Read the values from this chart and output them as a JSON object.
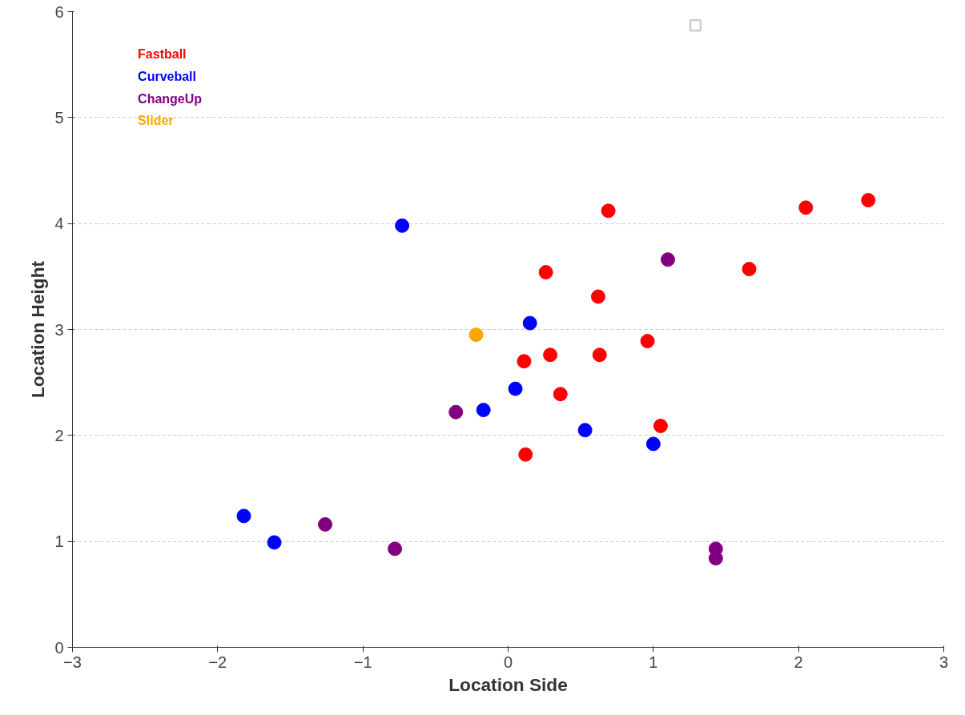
{
  "chart_data": {
    "type": "scatter",
    "xlabel": "Location Side",
    "ylabel": "Location Height",
    "xlim": [
      -3,
      3
    ],
    "ylim": [
      0,
      6
    ],
    "xticks": [
      {
        "value": -3,
        "label": "−3"
      },
      {
        "value": -2,
        "label": "−2"
      },
      {
        "value": -1,
        "label": "−1"
      },
      0,
      1,
      2,
      3
    ],
    "yticks": [
      0,
      1,
      2,
      3,
      4,
      5,
      6
    ],
    "grid": "y",
    "legend": "top left",
    "marker": "circle",
    "series": [
      {
        "name": "Fastball",
        "color": "#ff0000",
        "x": [
          0.69,
          2.05,
          2.48,
          1.66,
          0.26,
          0.62,
          0.96,
          0.29,
          0.63,
          0.11,
          0.36,
          1.05,
          0.12
        ],
        "values": [
          4.12,
          4.15,
          4.22,
          3.57,
          3.54,
          3.31,
          2.89,
          2.76,
          2.76,
          2.7,
          2.39,
          2.09,
          1.82
        ]
      },
      {
        "name": "Curveball",
        "color": "#0000ff",
        "x": [
          -0.73,
          0.15,
          0.05,
          -0.17,
          0.53,
          1.0,
          -1.82,
          -1.61
        ],
        "values": [
          3.98,
          3.06,
          2.44,
          2.24,
          2.05,
          1.92,
          1.24,
          0.99
        ]
      },
      {
        "name": "ChangeUp",
        "color": "#800080",
        "x": [
          1.1,
          -0.36,
          -1.26,
          -0.78,
          1.43,
          1.43
        ],
        "values": [
          3.66,
          2.22,
          1.16,
          0.93,
          0.93,
          0.84
        ]
      },
      {
        "name": "Slider",
        "color": "#ffa500",
        "x": [
          -0.22
        ],
        "values": [
          2.95
        ]
      },
      {
        "color": "#cccccc",
        "marker": "square",
        "x": [
          1.29
        ],
        "values": [
          5.87
        ]
      }
    ]
  }
}
